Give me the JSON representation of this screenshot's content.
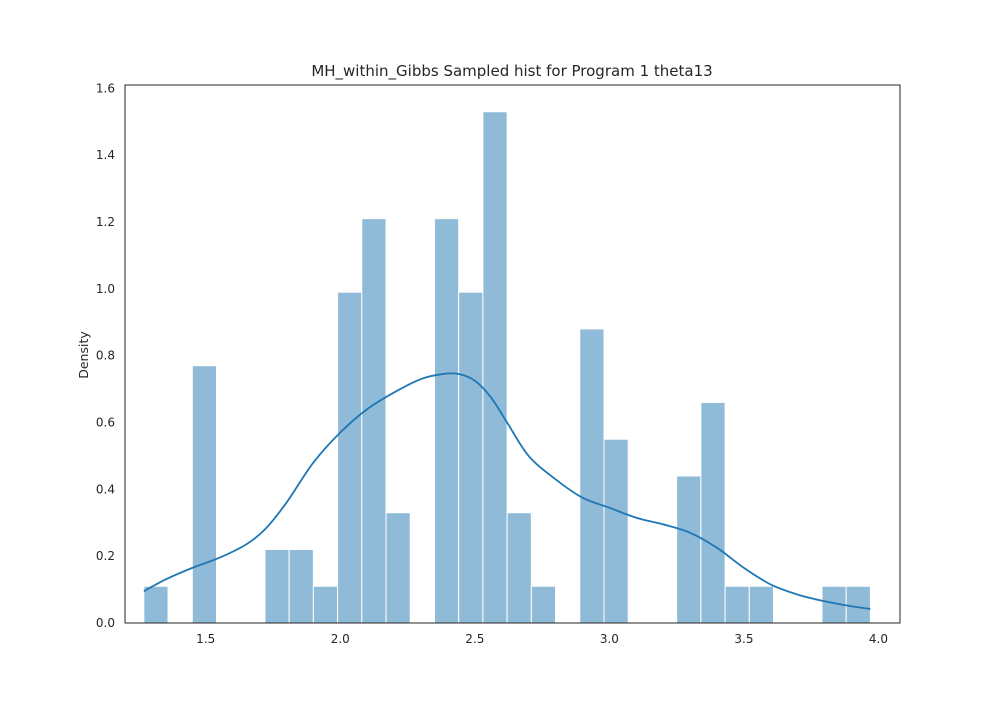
{
  "chart_data": {
    "type": "bar",
    "title": "MH_within_Gibbs Sampled hist for Program 1 theta13",
    "xlabel": "",
    "ylabel": "Density",
    "xlim": [
      1.2,
      4.08
    ],
    "ylim": [
      0,
      1.61
    ],
    "grid": false,
    "colors": {
      "bar": "#8fbad8",
      "kde": "#1f77b4"
    },
    "xticks": [
      {
        "v": 1.5,
        "label": "1.5"
      },
      {
        "v": 2.0,
        "label": "2.0"
      },
      {
        "v": 2.5,
        "label": "2.5"
      },
      {
        "v": 3.0,
        "label": "3.0"
      },
      {
        "v": 3.5,
        "label": "3.5"
      },
      {
        "v": 4.0,
        "label": "4.0"
      }
    ],
    "yticks": [
      {
        "v": 0.0,
        "label": "0.0"
      },
      {
        "v": 0.2,
        "label": "0.2"
      },
      {
        "v": 0.4,
        "label": "0.4"
      },
      {
        "v": 0.6,
        "label": "0.6"
      },
      {
        "v": 0.8,
        "label": "0.8"
      },
      {
        "v": 1.0,
        "label": "1.0"
      },
      {
        "v": 1.2,
        "label": "1.2"
      },
      {
        "v": 1.4,
        "label": "1.4"
      },
      {
        "v": 1.6,
        "label": "1.6"
      }
    ],
    "bins": [
      {
        "x0": 1.27,
        "x1": 1.36,
        "density": 0.11
      },
      {
        "x0": 1.36,
        "x1": 1.45,
        "density": 0.0
      },
      {
        "x0": 1.45,
        "x1": 1.54,
        "density": 0.77
      },
      {
        "x0": 1.54,
        "x1": 1.63,
        "density": 0.0
      },
      {
        "x0": 1.63,
        "x1": 1.72,
        "density": 0.0
      },
      {
        "x0": 1.72,
        "x1": 1.81,
        "density": 0.22
      },
      {
        "x0": 1.81,
        "x1": 1.9,
        "density": 0.22
      },
      {
        "x0": 1.9,
        "x1": 1.99,
        "density": 0.11
      },
      {
        "x0": 1.99,
        "x1": 2.08,
        "density": 0.99
      },
      {
        "x0": 2.08,
        "x1": 2.17,
        "density": 1.21
      },
      {
        "x0": 2.17,
        "x1": 2.26,
        "density": 0.33
      },
      {
        "x0": 2.26,
        "x1": 2.35,
        "density": 0.0
      },
      {
        "x0": 2.35,
        "x1": 2.44,
        "density": 1.21
      },
      {
        "x0": 2.44,
        "x1": 2.53,
        "density": 0.99
      },
      {
        "x0": 2.53,
        "x1": 2.62,
        "density": 1.53
      },
      {
        "x0": 2.62,
        "x1": 2.71,
        "density": 0.33
      },
      {
        "x0": 2.71,
        "x1": 2.8,
        "density": 0.11
      },
      {
        "x0": 2.8,
        "x1": 2.89,
        "density": 0.0
      },
      {
        "x0": 2.89,
        "x1": 2.98,
        "density": 0.88
      },
      {
        "x0": 2.98,
        "x1": 3.07,
        "density": 0.55
      },
      {
        "x0": 3.07,
        "x1": 3.16,
        "density": 0.0
      },
      {
        "x0": 3.16,
        "x1": 3.25,
        "density": 0.0
      },
      {
        "x0": 3.25,
        "x1": 3.34,
        "density": 0.44
      },
      {
        "x0": 3.34,
        "x1": 3.43,
        "density": 0.66
      },
      {
        "x0": 3.43,
        "x1": 3.52,
        "density": 0.11
      },
      {
        "x0": 3.52,
        "x1": 3.61,
        "density": 0.11
      },
      {
        "x0": 3.61,
        "x1": 3.7,
        "density": 0.0
      },
      {
        "x0": 3.7,
        "x1": 3.79,
        "density": 0.0
      },
      {
        "x0": 3.79,
        "x1": 3.88,
        "density": 0.11
      },
      {
        "x0": 3.88,
        "x1": 3.97,
        "density": 0.11
      }
    ],
    "kde": {
      "x": [
        1.27,
        1.35,
        1.45,
        1.55,
        1.65,
        1.72,
        1.8,
        1.9,
        2.0,
        2.1,
        2.2,
        2.3,
        2.38,
        2.44,
        2.5,
        2.56,
        2.62,
        2.7,
        2.8,
        2.9,
        3.0,
        3.1,
        3.2,
        3.3,
        3.4,
        3.5,
        3.6,
        3.7,
        3.8,
        3.9,
        3.97
      ],
      "y": [
        0.095,
        0.13,
        0.165,
        0.195,
        0.235,
        0.28,
        0.36,
        0.48,
        0.57,
        0.64,
        0.69,
        0.73,
        0.745,
        0.745,
        0.725,
        0.675,
        0.6,
        0.5,
        0.43,
        0.375,
        0.345,
        0.315,
        0.295,
        0.27,
        0.225,
        0.165,
        0.115,
        0.085,
        0.065,
        0.05,
        0.042
      ]
    }
  }
}
